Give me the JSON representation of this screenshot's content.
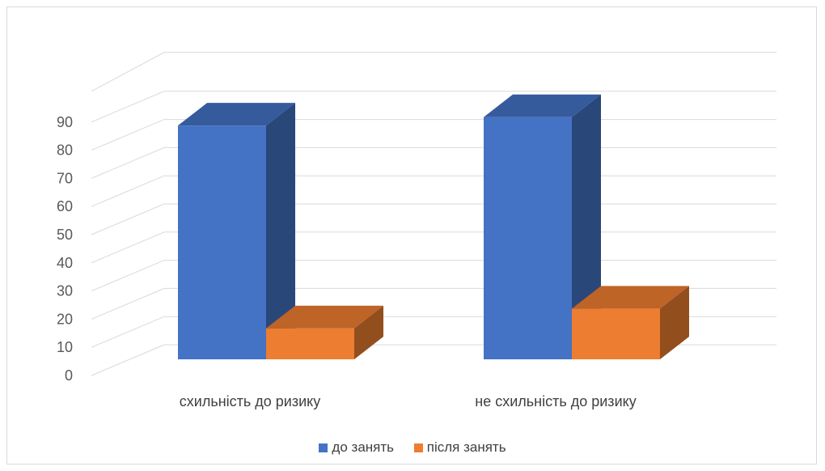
{
  "chart_data": {
    "type": "bar",
    "style": "3d-clustered-column",
    "categories": [
      "схильність до ризику",
      "не схильність до ризику"
    ],
    "series": [
      {
        "name": "до занять",
        "values": [
          83,
          86
        ],
        "color": "#4472C4"
      },
      {
        "name": "після занять",
        "values": [
          11,
          18
        ],
        "color": "#ED7D31"
      }
    ],
    "ylim": [
      0,
      90
    ],
    "yticks": [
      "0",
      "10",
      "20",
      "30",
      "40",
      "50",
      "60",
      "70",
      "80",
      "90"
    ],
    "grid": true,
    "legend_position": "bottom"
  }
}
